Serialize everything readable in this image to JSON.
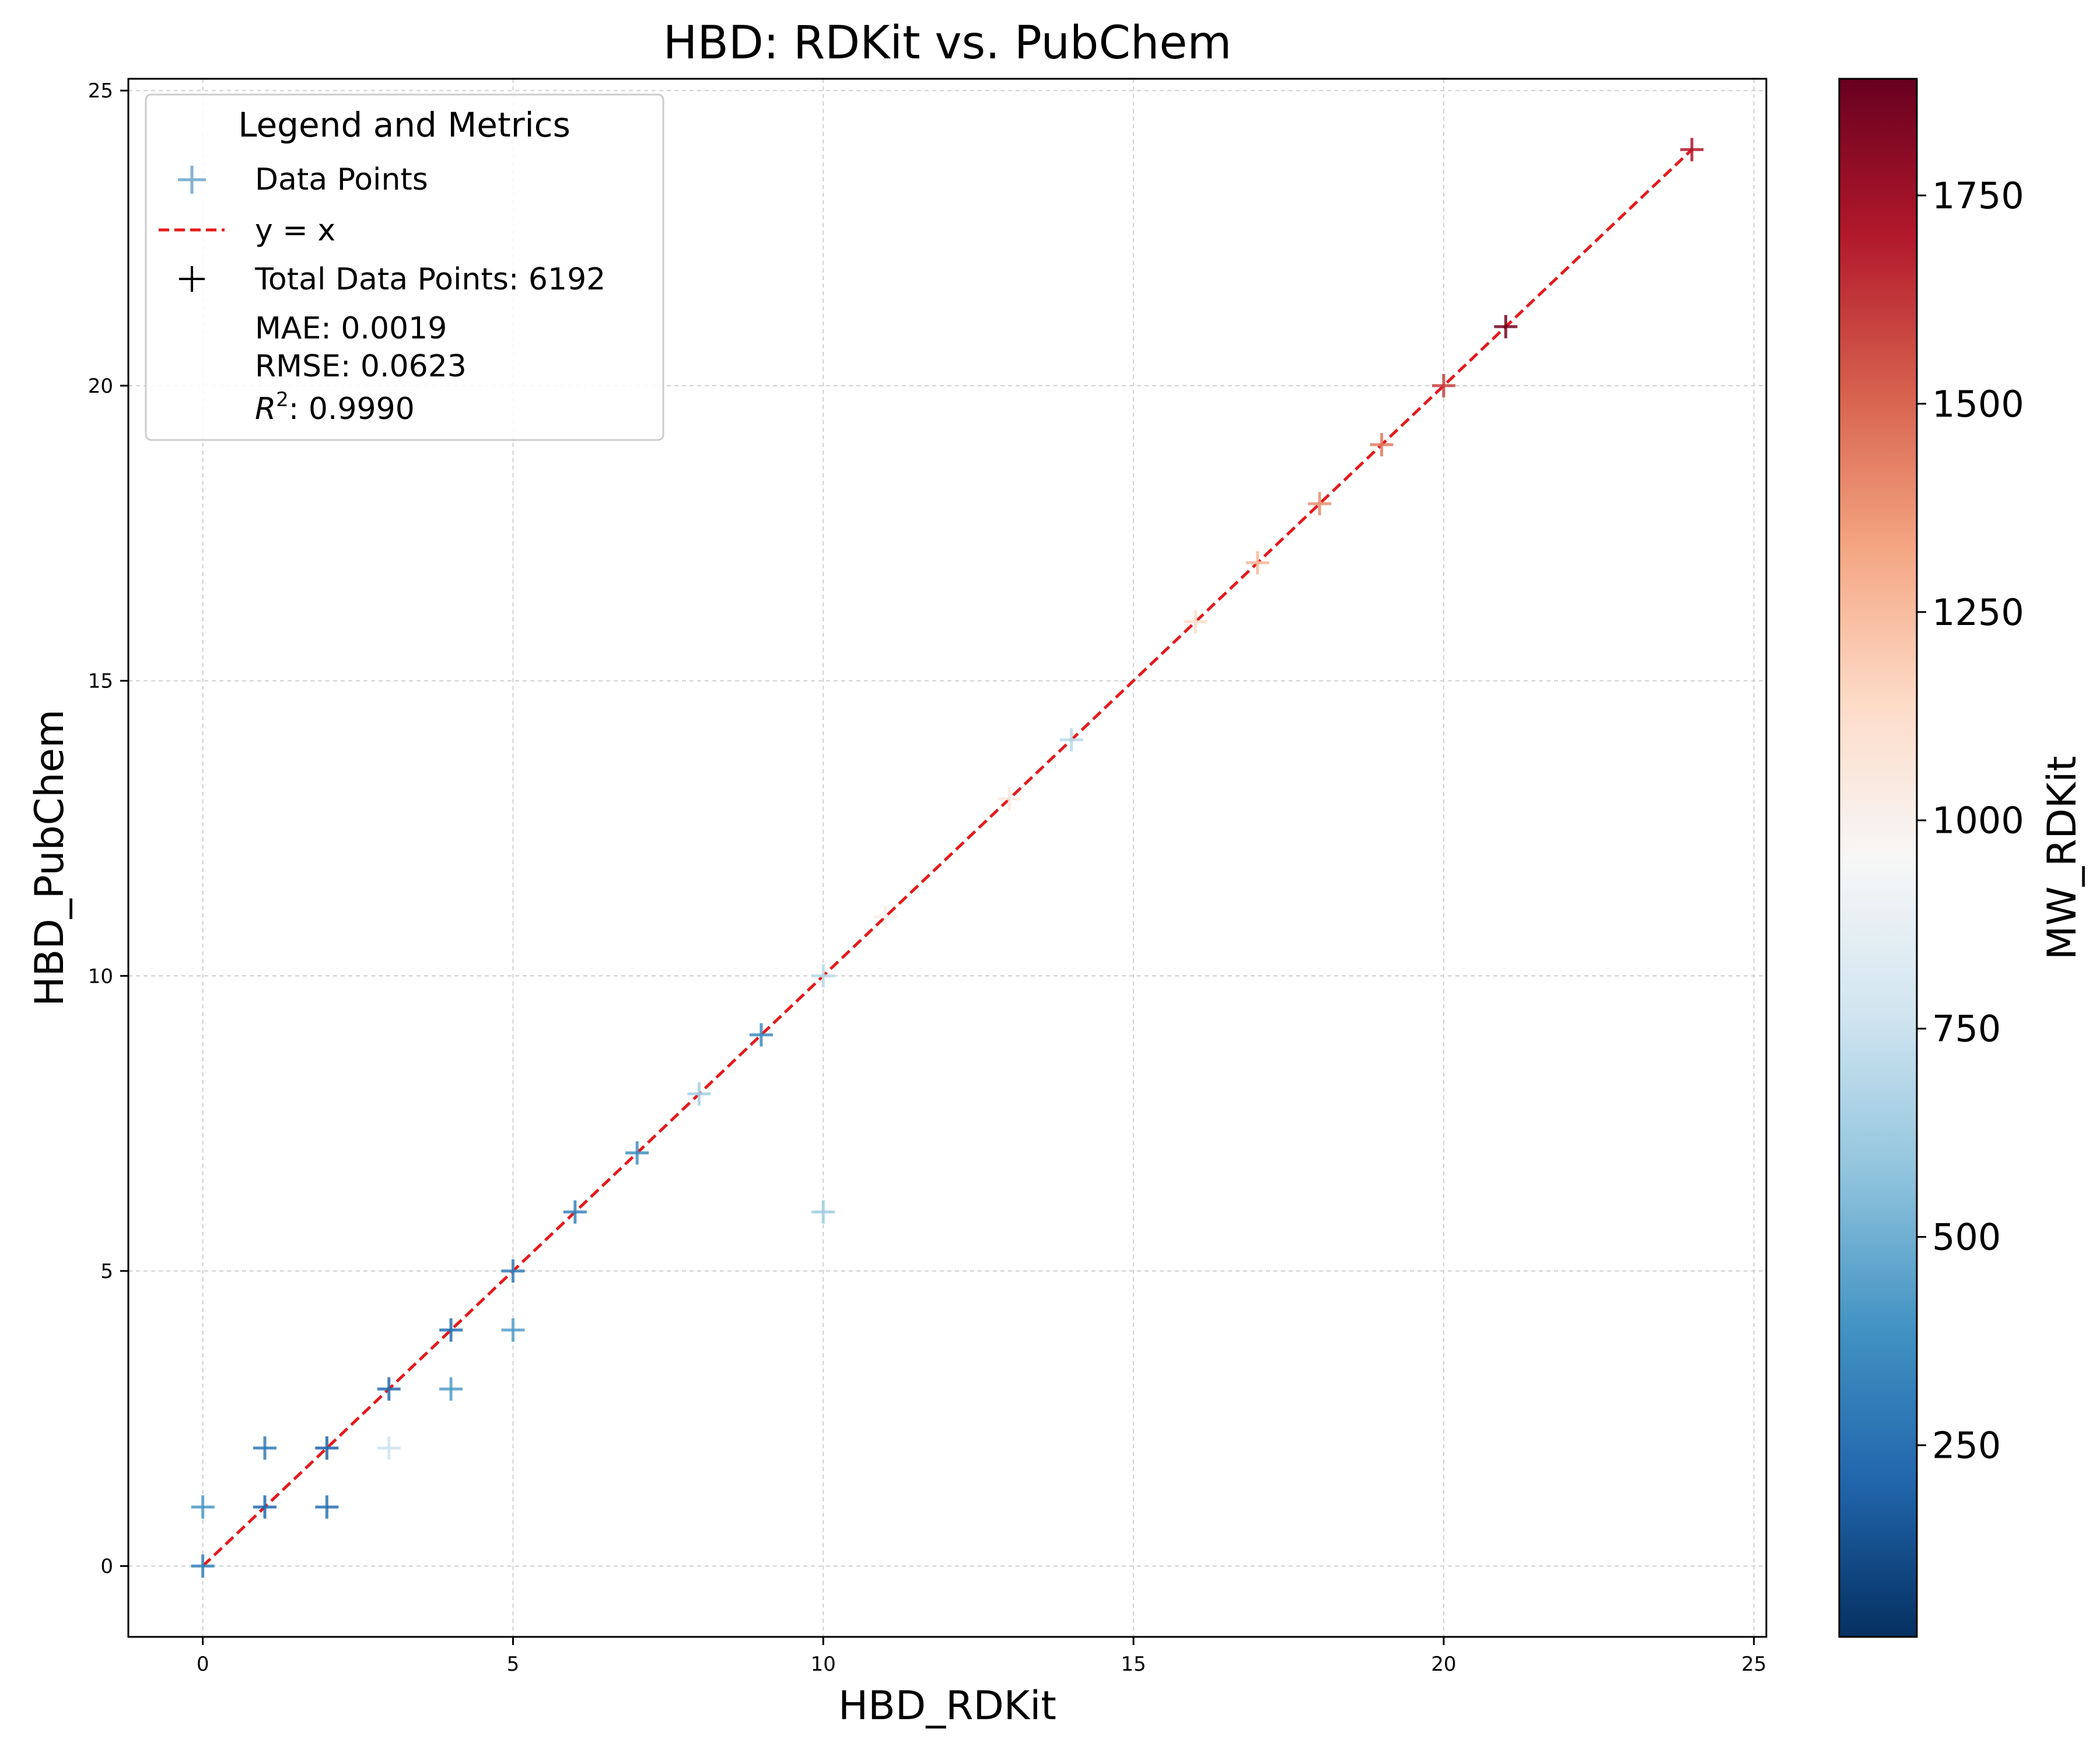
{
  "chart_data": {
    "type": "scatter",
    "title": "HBD: RDKit vs. PubChem",
    "xlabel": "HBD_RDKit",
    "ylabel": "HBD_PubChem",
    "xlim": [
      -1.2,
      25.2
    ],
    "ylim": [
      -1.2,
      25.2
    ],
    "xticks": [
      0,
      5,
      10,
      15,
      20,
      25
    ],
    "yticks": [
      0,
      5,
      10,
      15,
      20,
      25
    ],
    "grid": true,
    "marker": "+",
    "reference_line": {
      "label": "y = x",
      "from": 0,
      "to": 24,
      "color": "#e41a1c",
      "style": "dashed"
    },
    "colorbar": {
      "label": "MW_RDKit",
      "min": 20,
      "max": 1890,
      "ticks": [
        250,
        500,
        750,
        1000,
        1250,
        1500,
        1750
      ],
      "colormap": "RdBu_r"
    },
    "legend": {
      "title": "Legend and Metrics",
      "placement": "upper-left",
      "entries": [
        "Data Points",
        "y = x",
        "Total Data Points: 6192"
      ],
      "metrics": [
        "MAE: 0.0019",
        "RMSE: 0.0623"
      ],
      "r2_label": "R",
      "r2_exponent": "2",
      "r2_value": ": 0.9990"
    },
    "series": [
      {
        "points": [
          {
            "x": 0,
            "y": 0,
            "mw": 320
          },
          {
            "x": 0,
            "y": 1,
            "mw": 420
          },
          {
            "x": 1,
            "y": 1,
            "mw": 230
          },
          {
            "x": 1,
            "y": 2,
            "mw": 300
          },
          {
            "x": 2,
            "y": 2,
            "mw": 200
          },
          {
            "x": 2,
            "y": 1,
            "mw": 260
          },
          {
            "x": 3,
            "y": 3,
            "mw": 230
          },
          {
            "x": 3,
            "y": 2,
            "mw": 760
          },
          {
            "x": 4,
            "y": 4,
            "mw": 240
          },
          {
            "x": 4,
            "y": 3,
            "mw": 430
          },
          {
            "x": 5,
            "y": 5,
            "mw": 300
          },
          {
            "x": 5,
            "y": 4,
            "mw": 440
          },
          {
            "x": 6,
            "y": 6,
            "mw": 330
          },
          {
            "x": 7,
            "y": 7,
            "mw": 380
          },
          {
            "x": 8,
            "y": 8,
            "mw": 640
          },
          {
            "x": 9,
            "y": 9,
            "mw": 360
          },
          {
            "x": 10,
            "y": 10,
            "mw": 700
          },
          {
            "x": 10,
            "y": 6,
            "mw": 620
          },
          {
            "x": 11,
            "y": 11,
            "mw": 1010
          },
          {
            "x": 13,
            "y": 13,
            "mw": 1060
          },
          {
            "x": 14,
            "y": 14,
            "mw": 690
          },
          {
            "x": 16,
            "y": 16,
            "mw": 1130
          },
          {
            "x": 17,
            "y": 17,
            "mw": 1260
          },
          {
            "x": 18,
            "y": 18,
            "mw": 1390
          },
          {
            "x": 19,
            "y": 19,
            "mw": 1450
          },
          {
            "x": 20,
            "y": 20,
            "mw": 1600
          },
          {
            "x": 21,
            "y": 21,
            "mw": 1860
          },
          {
            "x": 24,
            "y": 24,
            "mw": 1700
          }
        ]
      }
    ],
    "colors": {
      "reference_line": "#e41a1c",
      "grid": "#d0d0d0",
      "legend_marker_data": "#7fb2d5",
      "legend_marker_total": "#000000"
    }
  }
}
